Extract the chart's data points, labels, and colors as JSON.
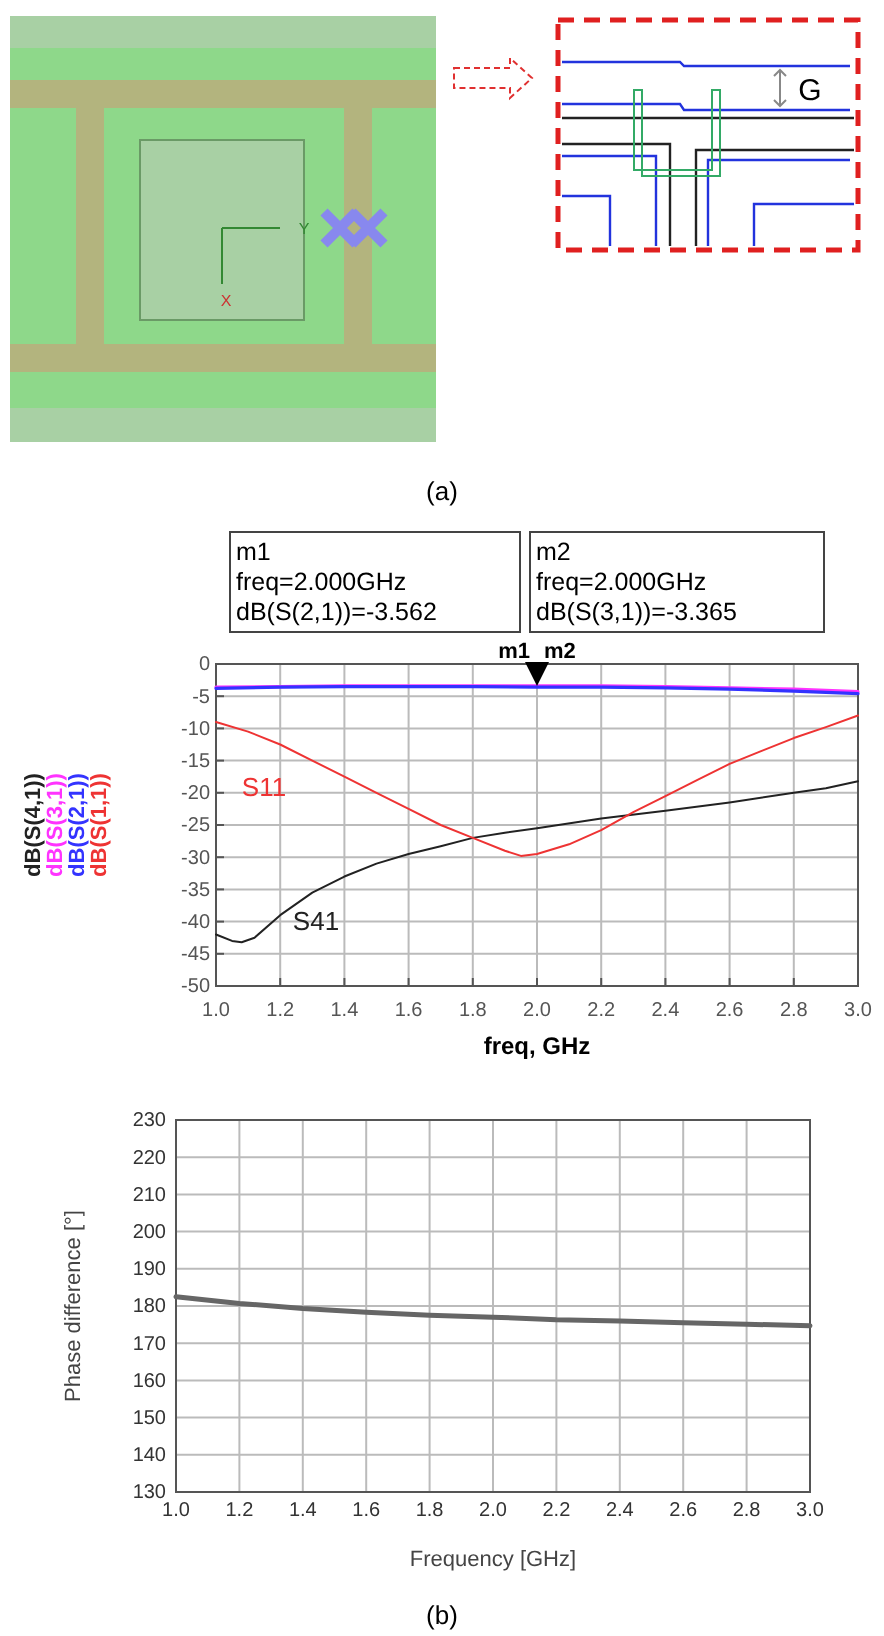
{
  "chart_data": [
    {
      "type": "line",
      "xlabel": "freq, GHz",
      "legend": "left",
      "grid": true,
      "xlim": [
        1.0,
        3.0
      ],
      "ylim": [
        -50,
        0
      ],
      "xticks": [
        {
          "value": 1.0,
          "label": "1.0"
        },
        1.2,
        1.4,
        1.6,
        1.8,
        {
          "value": 2.0,
          "label": "2.0"
        },
        2.2,
        2.4,
        2.6,
        2.8,
        {
          "value": 3.0,
          "label": "3.0"
        }
      ],
      "yticks": [
        -50,
        -45,
        -40,
        -35,
        -30,
        -25,
        -20,
        -15,
        -10,
        -5,
        0
      ],
      "series": [
        {
          "name": "dB(S(4,1))",
          "color": "#222222",
          "x": [
            1.0,
            1.05,
            1.08,
            1.12,
            1.2,
            1.3,
            1.4,
            1.5,
            1.6,
            1.7,
            1.8,
            1.9,
            2.0,
            2.2,
            2.4,
            2.6,
            2.8,
            2.9,
            3.0
          ],
          "values": [
            -42,
            -43,
            -43.2,
            -42.5,
            -39,
            -35.5,
            -33,
            -31,
            -29.5,
            -28.3,
            -27,
            -26.2,
            -25.5,
            -24,
            -22.8,
            -21.5,
            -20,
            -19.3,
            -18.2
          ]
        },
        {
          "name": "dB(S(3,1))",
          "color": "#ff33ff",
          "x": [
            1.0,
            1.2,
            1.4,
            1.6,
            1.8,
            2.0,
            2.2,
            2.4,
            2.6,
            2.8,
            3.0
          ],
          "values": [
            -3.6,
            -3.5,
            -3.4,
            -3.4,
            -3.4,
            -3.4,
            -3.4,
            -3.5,
            -3.7,
            -3.9,
            -4.3
          ]
        },
        {
          "name": "dB(S(2,1))",
          "color": "#3333ff",
          "x": [
            1.0,
            1.2,
            1.4,
            1.6,
            1.8,
            2.0,
            2.2,
            2.4,
            2.6,
            2.8,
            3.0
          ],
          "values": [
            -3.8,
            -3.6,
            -3.5,
            -3.5,
            -3.5,
            -3.6,
            -3.6,
            -3.7,
            -3.9,
            -4.2,
            -4.6
          ]
        },
        {
          "name": "dB(S(1,1))",
          "color": "#ee3333",
          "x": [
            1.0,
            1.1,
            1.2,
            1.3,
            1.4,
            1.5,
            1.6,
            1.7,
            1.8,
            1.9,
            1.95,
            2.0,
            2.1,
            2.2,
            2.3,
            2.4,
            2.5,
            2.6,
            2.7,
            2.8,
            2.9,
            3.0
          ],
          "values": [
            -9,
            -10.5,
            -12.5,
            -15,
            -17.5,
            -20,
            -22.5,
            -25,
            -27,
            -29,
            -29.8,
            -29.5,
            -28,
            -25.8,
            -23,
            -20.5,
            -18,
            -15.5,
            -13.5,
            -11.5,
            -9.8,
            -8
          ]
        }
      ],
      "annotations": [
        "(a)",
        "G",
        "Y",
        "X",
        "m1\nfreq=2.000GHz\ndB(S(2,1))=-3.562",
        "m2\nfreq=2.000GHz\ndB(S(3,1))=-3.365",
        "S41",
        "S11",
        "m1",
        "m2"
      ]
    },
    {
      "type": "line",
      "xlabel": "Frequency [GHz]",
      "ylabel": "Phase difference [°]",
      "grid": true,
      "xlim": [
        1.0,
        3.0
      ],
      "ylim": [
        130,
        230
      ],
      "xticks": [
        {
          "value": 1.0,
          "label": "1.0"
        },
        1.2,
        1.4,
        1.6,
        1.8,
        {
          "value": 2.0,
          "label": "2.0"
        },
        2.2,
        2.4,
        2.6,
        2.8,
        {
          "value": 3.0,
          "label": "3.0"
        }
      ],
      "yticks": [
        130,
        140,
        150,
        160,
        170,
        180,
        190,
        200,
        210,
        220,
        230
      ],
      "series": [
        {
          "color": "#666666",
          "x": [
            1.0,
            1.2,
            1.4,
            1.6,
            1.8,
            2.0,
            2.2,
            2.4,
            2.6,
            2.8,
            3.0
          ],
          "values": [
            182.5,
            180.7,
            179.3,
            178.3,
            177.5,
            177,
            176.3,
            176,
            175.5,
            175.1,
            174.7
          ]
        }
      ],
      "annotations": [
        "(b)"
      ]
    }
  ]
}
